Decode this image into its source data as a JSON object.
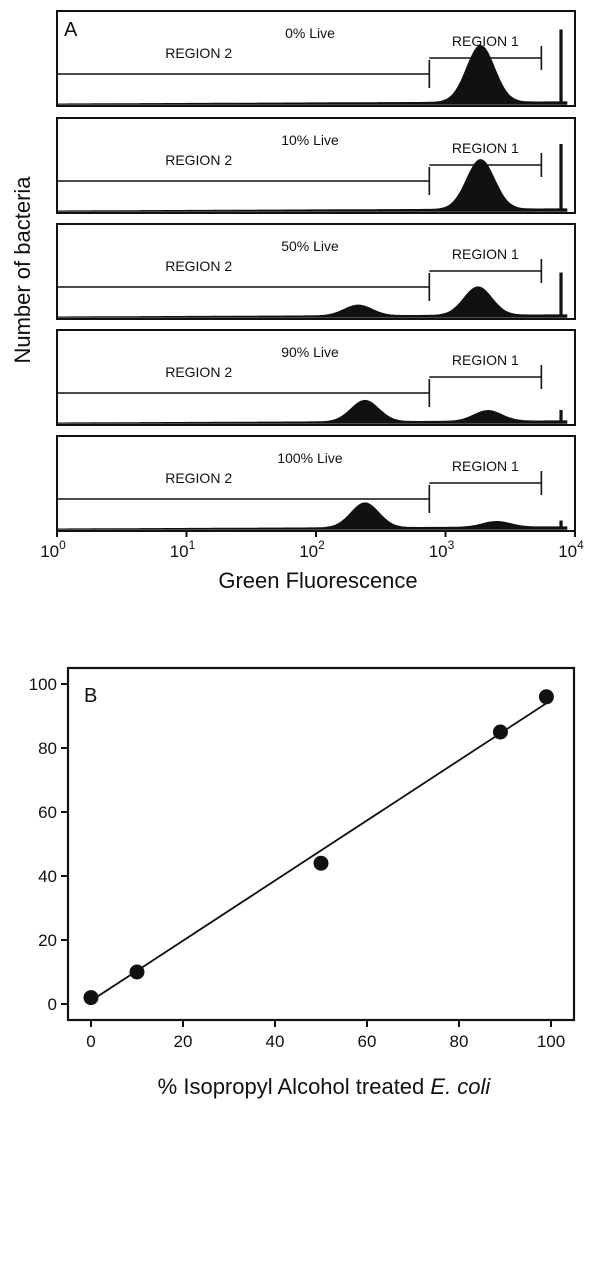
{
  "chart_data": [
    {
      "panel": "A",
      "type": "area",
      "x_scale": "log",
      "xlim": [
        1,
        10000
      ],
      "xlabel": "Green Fluorescence",
      "ylabel": "Number of bacteria",
      "x_ticks": [
        {
          "base": "10",
          "exp": "0"
        },
        {
          "base": "10",
          "exp": "1"
        },
        {
          "base": "10",
          "exp": "2"
        },
        {
          "base": "10",
          "exp": "3"
        },
        {
          "base": "10",
          "exp": "4"
        }
      ],
      "region1_range": [
        750,
        5500
      ],
      "region2_range": [
        1,
        750
      ],
      "region1_label": "REGION 1",
      "region2_label": "REGION 2",
      "marker_peak_x": 7800,
      "histograms": [
        {
          "label": "0% Live",
          "peaks": [
            {
              "x": 2100,
              "height": 0.8
            }
          ],
          "marker_height": 1.0
        },
        {
          "label": "10% Live",
          "peaks": [
            {
              "x": 2100,
              "height": 0.7
            }
          ],
          "marker_height": 0.9
        },
        {
          "label": "50% Live",
          "peaks": [
            {
              "x": 230,
              "height": 0.15
            },
            {
              "x": 2000,
              "height": 0.4
            }
          ],
          "marker_height": 0.6
        },
        {
          "label": "90% Live",
          "peaks": [
            {
              "x": 260,
              "height": 0.3
            },
            {
              "x": 2400,
              "height": 0.15
            }
          ],
          "marker_height": 0.18
        },
        {
          "label": "100% Live",
          "peaks": [
            {
              "x": 260,
              "height": 0.35
            },
            {
              "x": 2800,
              "height": 0.08
            }
          ],
          "marker_height": 0.12
        }
      ]
    },
    {
      "panel": "B",
      "type": "scatter",
      "x": [
        0,
        10,
        50,
        89,
        99
      ],
      "y": [
        2,
        10,
        44,
        85,
        96
      ],
      "fit_line": {
        "x": [
          0,
          99
        ],
        "y": [
          1,
          94
        ]
      },
      "xlim": [
        -5,
        105
      ],
      "ylim": [
        -5,
        105
      ],
      "x_ticks": [
        "0",
        "20",
        "40",
        "60",
        "80",
        "100"
      ],
      "y_ticks": [
        "0",
        "20",
        "40",
        "60",
        "80",
        "100"
      ],
      "xlabel_prefix": "% Isopropyl Alcohol treated ",
      "xlabel_italic": "E. coli"
    }
  ]
}
